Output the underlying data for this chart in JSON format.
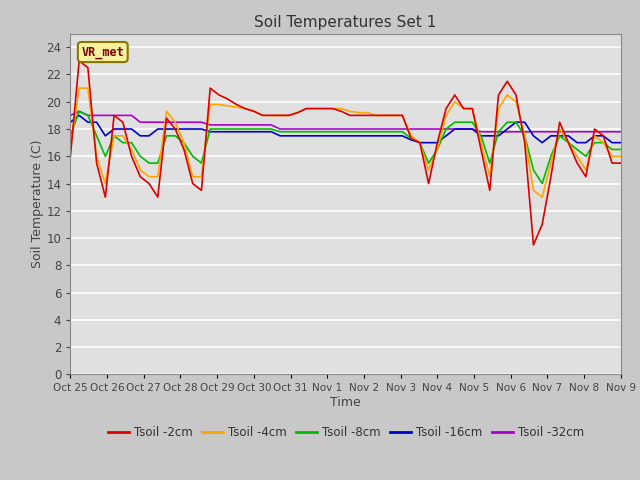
{
  "title": "Soil Temperatures Set 1",
  "xlabel": "Time",
  "ylabel": "Soil Temperature (C)",
  "ylim": [
    0,
    25
  ],
  "yticks": [
    0,
    2,
    4,
    6,
    8,
    10,
    12,
    14,
    16,
    18,
    20,
    22,
    24
  ],
  "bg_color": "#e0e0e0",
  "fig_color": "#c8c8c8",
  "grid_color": "#ffffff",
  "annotation_text": "VR_met",
  "annotation_bg": "#f5f0a0",
  "annotation_border": "#8b7500",
  "annotation_text_color": "#800000",
  "x_tick_labels": [
    "Oct 25",
    "Oct 26",
    "Oct 27",
    "Oct 28",
    "Oct 29",
    "Oct 30",
    "Oct 31",
    "Nov 1",
    "Nov 2",
    "Nov 3",
    "Nov 4",
    "Nov 5",
    "Nov 6",
    "Nov 7",
    "Nov 8",
    "Nov 9"
  ],
  "series": {
    "Tsoil -2cm": {
      "color": "#dd0000",
      "lw": 1.2
    },
    "Tsoil -4cm": {
      "color": "#ffa500",
      "lw": 1.2
    },
    "Tsoil -8cm": {
      "color": "#00bb00",
      "lw": 1.2
    },
    "Tsoil -16cm": {
      "color": "#0000cc",
      "lw": 1.2
    },
    "Tsoil -32cm": {
      "color": "#aa00cc",
      "lw": 1.2
    }
  },
  "t2cm": [
    16.0,
    23.0,
    22.5,
    15.5,
    13.0,
    19.0,
    18.5,
    16.0,
    14.5,
    14.0,
    13.0,
    18.8,
    18.0,
    16.5,
    14.0,
    13.5,
    21.0,
    20.5,
    20.2,
    19.8,
    19.5,
    19.3,
    19.0,
    19.0,
    19.0,
    19.0,
    19.2,
    19.5,
    19.5,
    19.5,
    19.5,
    19.3,
    19.0,
    19.0,
    19.0,
    19.0,
    19.0,
    19.0,
    19.0,
    17.3,
    17.0,
    14.0,
    17.0,
    19.5,
    20.5,
    19.5,
    19.5,
    16.5,
    13.5,
    20.5,
    21.5,
    20.5,
    17.0,
    9.5,
    11.0,
    14.5,
    18.5,
    17.0,
    15.5,
    14.5,
    18.0,
    17.5,
    15.5,
    15.5
  ],
  "t4cm": [
    16.5,
    21.0,
    21.0,
    16.0,
    14.0,
    17.5,
    17.5,
    16.5,
    15.0,
    14.5,
    14.5,
    19.3,
    18.5,
    17.0,
    14.5,
    14.5,
    19.8,
    19.8,
    19.7,
    19.6,
    19.5,
    19.3,
    19.0,
    19.0,
    19.0,
    19.0,
    19.2,
    19.5,
    19.5,
    19.5,
    19.5,
    19.5,
    19.3,
    19.2,
    19.2,
    19.0,
    19.0,
    19.0,
    19.0,
    17.5,
    17.0,
    15.0,
    16.5,
    19.0,
    20.0,
    19.5,
    19.5,
    17.0,
    14.5,
    19.5,
    20.5,
    20.0,
    17.5,
    13.5,
    13.0,
    15.5,
    18.0,
    17.0,
    16.0,
    15.0,
    17.5,
    17.0,
    16.0,
    16.0
  ],
  "t8cm": [
    17.5,
    19.3,
    19.0,
    17.5,
    16.0,
    17.5,
    17.0,
    17.0,
    16.0,
    15.5,
    15.5,
    17.5,
    17.5,
    17.0,
    16.0,
    15.5,
    18.0,
    18.0,
    18.0,
    18.0,
    18.0,
    18.0,
    18.0,
    18.0,
    17.8,
    17.8,
    17.8,
    17.8,
    17.8,
    17.8,
    17.8,
    17.8,
    17.8,
    17.8,
    17.8,
    17.8,
    17.8,
    17.8,
    17.8,
    17.3,
    17.0,
    15.5,
    16.5,
    18.0,
    18.5,
    18.5,
    18.5,
    17.5,
    15.5,
    17.8,
    18.5,
    18.5,
    17.5,
    15.0,
    14.0,
    16.0,
    17.5,
    17.0,
    16.5,
    16.0,
    17.0,
    17.0,
    16.5,
    16.5
  ],
  "t16cm": [
    18.5,
    19.0,
    18.5,
    18.5,
    17.5,
    18.0,
    18.0,
    18.0,
    17.5,
    17.5,
    18.0,
    18.0,
    18.0,
    18.0,
    18.0,
    18.0,
    17.8,
    17.8,
    17.8,
    17.8,
    17.8,
    17.8,
    17.8,
    17.8,
    17.5,
    17.5,
    17.5,
    17.5,
    17.5,
    17.5,
    17.5,
    17.5,
    17.5,
    17.5,
    17.5,
    17.5,
    17.5,
    17.5,
    17.5,
    17.2,
    17.0,
    17.0,
    17.0,
    17.5,
    18.0,
    18.0,
    18.0,
    17.5,
    17.5,
    17.5,
    18.0,
    18.5,
    18.5,
    17.5,
    17.0,
    17.5,
    17.5,
    17.5,
    17.0,
    17.0,
    17.5,
    17.5,
    17.0,
    17.0
  ],
  "t32cm": [
    19.0,
    19.3,
    19.0,
    19.0,
    19.0,
    19.0,
    19.0,
    19.0,
    18.5,
    18.5,
    18.5,
    18.5,
    18.5,
    18.5,
    18.5,
    18.5,
    18.3,
    18.3,
    18.3,
    18.3,
    18.3,
    18.3,
    18.3,
    18.3,
    18.0,
    18.0,
    18.0,
    18.0,
    18.0,
    18.0,
    18.0,
    18.0,
    18.0,
    18.0,
    18.0,
    18.0,
    18.0,
    18.0,
    18.0,
    18.0,
    18.0,
    18.0,
    18.0,
    18.0,
    18.0,
    18.0,
    18.0,
    17.8,
    17.8,
    17.8,
    17.8,
    17.8,
    17.8,
    17.8,
    17.8,
    17.8,
    17.8,
    17.8,
    17.8,
    17.8,
    17.8,
    17.8,
    17.8,
    17.8
  ]
}
